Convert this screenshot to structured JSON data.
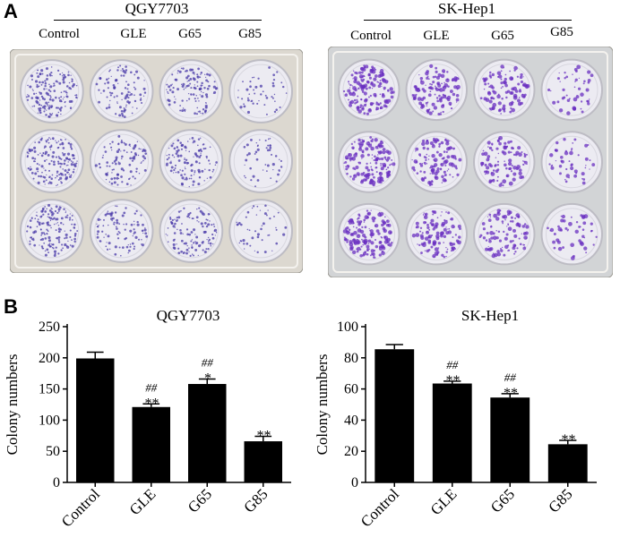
{
  "panel_a": {
    "letter": "A",
    "plates": [
      {
        "title": "QGY7703",
        "columns": [
          "Control",
          "GLE",
          "G65",
          "G85"
        ],
        "colony_density": [
          1.0,
          0.6,
          0.75,
          0.3
        ],
        "stain_color": "#4a3aa8",
        "plate_color": "#dcd8d0"
      },
      {
        "title": "SK-Hep1",
        "columns": [
          "Control",
          "GLE",
          "G65",
          "G85"
        ],
        "colony_density": [
          1.0,
          0.75,
          0.65,
          0.3
        ],
        "stain_color": "#6a2fc0",
        "plate_color": "#d2d4d6"
      }
    ]
  },
  "panel_b": {
    "letter": "B"
  },
  "chart_data": [
    {
      "type": "bar",
      "title": "QGY7703",
      "ylabel": "Colony numbers",
      "categories": [
        "Control",
        "GLE",
        "G65",
        "G85"
      ],
      "values": [
        199,
        121,
        158,
        66
      ],
      "errors": [
        10,
        5,
        8,
        8
      ],
      "ylim": [
        0,
        250
      ],
      "yticks": [
        "0",
        "50",
        "100",
        "150",
        "200",
        "250"
      ],
      "annotations": [
        {
          "category": "GLE",
          "lines": [
            "##",
            "**"
          ]
        },
        {
          "category": "G65",
          "lines": [
            "##",
            "*"
          ]
        },
        {
          "category": "G85",
          "lines": [
            "**"
          ]
        }
      ],
      "bar_color": "#000000"
    },
    {
      "type": "bar",
      "title": "SK-Hep1",
      "ylabel": "Colony numbers",
      "categories": [
        "Control",
        "GLE",
        "G65",
        "G85"
      ],
      "values": [
        85.5,
        63.5,
        54.5,
        24.5
      ],
      "errors": [
        3,
        1.5,
        2.5,
        2.5
      ],
      "ylim": [
        0,
        100
      ],
      "yticks": [
        "0",
        "20",
        "40",
        "60",
        "80",
        "100"
      ],
      "annotations": [
        {
          "category": "GLE",
          "lines": [
            "##",
            "**"
          ]
        },
        {
          "category": "G65",
          "lines": [
            "##",
            "**"
          ]
        },
        {
          "category": "G85",
          "lines": [
            "**"
          ]
        }
      ],
      "bar_color": "#000000"
    }
  ]
}
